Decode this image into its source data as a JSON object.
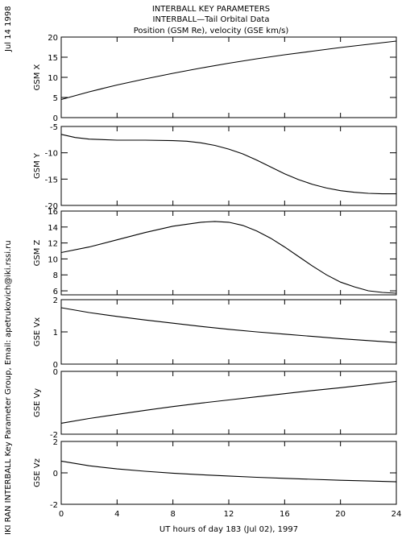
{
  "header": {
    "title_line1": "INTERBALL KEY PARAMETERS",
    "title_line2": "INTERBALL—Tail Orbital Data",
    "title_line3": "Position (GSM Re), velocity (GSE km/s)"
  },
  "side": {
    "date": "Jul 14 1998",
    "credit": "IKI RAN INTERBALL Key Parameter Group, Email: apetrukovich@iki.rssi.ru"
  },
  "x_axis": {
    "label": "UT hours of day 183 (Jul 02), 1997",
    "ticks": [
      0,
      4,
      8,
      12,
      16,
      20,
      24
    ],
    "range": [
      0,
      24
    ]
  },
  "chart_data": [
    {
      "type": "line",
      "ylabel": "GSM X",
      "ylim": [
        0,
        20
      ],
      "yticks": [
        0,
        5,
        10,
        15,
        20
      ],
      "series": [
        {
          "x": [
            0,
            2,
            4,
            6,
            8,
            10,
            12,
            14,
            16,
            18,
            20,
            22,
            24
          ],
          "values": [
            4.5,
            6.4,
            8.1,
            9.6,
            11.0,
            12.3,
            13.5,
            14.6,
            15.6,
            16.5,
            17.4,
            18.2,
            19.0
          ]
        }
      ]
    },
    {
      "type": "line",
      "ylabel": "GSM Y",
      "ylim": [
        -20,
        -5
      ],
      "yticks": [
        -20,
        -15,
        -10,
        -5
      ],
      "series": [
        {
          "x": [
            0,
            1,
            2,
            4,
            6,
            8,
            9,
            10,
            11,
            12,
            13,
            14,
            15,
            16,
            17,
            18,
            19,
            20,
            21,
            22,
            23,
            24
          ],
          "values": [
            -6.5,
            -7.1,
            -7.4,
            -7.6,
            -7.6,
            -7.7,
            -7.8,
            -8.1,
            -8.6,
            -9.3,
            -10.2,
            -11.4,
            -12.7,
            -14.0,
            -15.1,
            -16.0,
            -16.7,
            -17.2,
            -17.5,
            -17.7,
            -17.8,
            -17.8
          ]
        }
      ]
    },
    {
      "type": "line",
      "ylabel": "GSM Z",
      "ylim": [
        5.5,
        16
      ],
      "yticks": [
        6,
        8,
        10,
        12,
        14,
        16
      ],
      "series": [
        {
          "x": [
            0,
            2,
            4,
            6,
            8,
            10,
            11,
            12,
            13,
            14,
            15,
            16,
            17,
            18,
            19,
            20,
            21,
            22,
            23,
            24
          ],
          "values": [
            10.8,
            11.5,
            12.4,
            13.3,
            14.1,
            14.6,
            14.7,
            14.6,
            14.2,
            13.5,
            12.6,
            11.5,
            10.3,
            9.1,
            8.0,
            7.1,
            6.5,
            6.0,
            5.8,
            5.7
          ]
        }
      ]
    },
    {
      "type": "line",
      "ylabel": "GSE Vx",
      "ylim": [
        0,
        2
      ],
      "yticks": [
        0,
        1,
        2
      ],
      "series": [
        {
          "x": [
            0,
            2,
            4,
            6,
            8,
            10,
            12,
            14,
            16,
            18,
            20,
            22,
            24
          ],
          "values": [
            1.75,
            1.6,
            1.48,
            1.37,
            1.27,
            1.17,
            1.08,
            1.0,
            0.93,
            0.86,
            0.79,
            0.73,
            0.67
          ]
        }
      ]
    },
    {
      "type": "line",
      "ylabel": "GSE Vy",
      "ylim": [
        -2,
        0
      ],
      "yticks": [
        -2,
        0
      ],
      "series": [
        {
          "x": [
            0,
            2,
            4,
            6,
            8,
            10,
            12,
            14,
            16,
            18,
            20,
            22,
            24
          ],
          "values": [
            -1.65,
            -1.5,
            -1.37,
            -1.24,
            -1.12,
            -1.01,
            -0.91,
            -0.81,
            -0.71,
            -0.61,
            -0.52,
            -0.42,
            -0.32
          ]
        }
      ]
    },
    {
      "type": "line",
      "ylabel": "GSE Vz",
      "ylim": [
        -2,
        2
      ],
      "yticks": [
        -2,
        0,
        2
      ],
      "series": [
        {
          "x": [
            0,
            2,
            4,
            6,
            8,
            10,
            12,
            14,
            16,
            18,
            20,
            22,
            24
          ],
          "values": [
            0.75,
            0.45,
            0.25,
            0.1,
            -0.02,
            -0.12,
            -0.2,
            -0.28,
            -0.35,
            -0.41,
            -0.47,
            -0.52,
            -0.57
          ]
        }
      ]
    }
  ]
}
